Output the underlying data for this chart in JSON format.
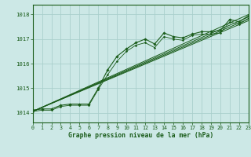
{
  "bg_color": "#cce8e6",
  "grid_color": "#aacfcc",
  "line_color": "#1a5c1a",
  "xlabel": "Graphe pression niveau de la mer (hPa)",
  "xlim": [
    0,
    23
  ],
  "ylim": [
    1013.6,
    1018.4
  ],
  "yticks": [
    1014,
    1015,
    1016,
    1017,
    1018
  ],
  "xticks": [
    0,
    1,
    2,
    3,
    4,
    5,
    6,
    7,
    8,
    9,
    10,
    11,
    12,
    13,
    14,
    15,
    16,
    17,
    18,
    19,
    20,
    21,
    22,
    23
  ],
  "series1": [
    1014.1,
    1014.15,
    1014.15,
    1014.3,
    1014.35,
    1014.35,
    1014.35,
    1015.0,
    1015.75,
    1016.3,
    1016.6,
    1016.85,
    1017.0,
    1016.8,
    1017.25,
    1017.1,
    1017.05,
    1017.2,
    1017.3,
    1017.3,
    1017.35,
    1017.8,
    1017.7,
    1017.95
  ],
  "series2": [
    1014.05,
    1014.1,
    1014.1,
    1014.25,
    1014.3,
    1014.3,
    1014.3,
    1014.95,
    1015.55,
    1016.1,
    1016.5,
    1016.75,
    1016.85,
    1016.65,
    1017.1,
    1017.0,
    1016.95,
    1017.15,
    1017.2,
    1017.2,
    1017.25,
    1017.7,
    1017.6,
    1017.85
  ],
  "trend1_x": [
    0,
    23
  ],
  "trend1_y": [
    1014.05,
    1018.0
  ],
  "trend2_x": [
    0,
    23
  ],
  "trend2_y": [
    1014.05,
    1017.9
  ],
  "trend3_x": [
    0,
    23
  ],
  "trend3_y": [
    1014.05,
    1017.82
  ],
  "trend4_x": [
    0,
    23
  ],
  "trend4_y": [
    1014.05,
    1017.75
  ]
}
